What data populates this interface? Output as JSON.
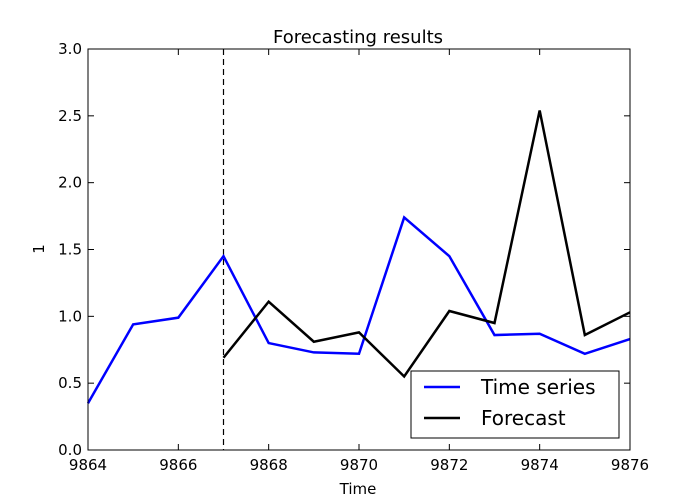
{
  "chart_data": {
    "type": "line",
    "title": "Forecasting results",
    "xlabel": "Time",
    "ylabel": "1",
    "xlim": [
      9864,
      9876
    ],
    "ylim": [
      0.0,
      3.0
    ],
    "xticks": [
      "9864",
      "9866",
      "9868",
      "9870",
      "9872",
      "9874",
      "9876"
    ],
    "yticks": [
      "0.0",
      "0.5",
      "1.0",
      "1.5",
      "2.0",
      "2.5",
      "3.0"
    ],
    "grid": false,
    "legend_position": "bottom-right",
    "vline": {
      "x": 9867,
      "style": "dashed",
      "color": "#000000"
    },
    "series": [
      {
        "name": "Time series",
        "color": "#0000ff",
        "x": [
          9864,
          9865,
          9866,
          9867,
          9868,
          9869,
          9870,
          9871,
          9872,
          9873,
          9874,
          9875,
          9876
        ],
        "y": [
          0.35,
          0.94,
          0.99,
          1.45,
          0.8,
          0.73,
          0.72,
          1.74,
          1.45,
          0.86,
          0.87,
          0.72,
          0.83
        ]
      },
      {
        "name": "Forecast",
        "color": "#000000",
        "x": [
          9867,
          9868,
          9869,
          9870,
          9871,
          9872,
          9873,
          9874,
          9875,
          9876
        ],
        "y": [
          0.69,
          1.11,
          0.81,
          0.88,
          0.55,
          1.04,
          0.95,
          2.54,
          0.86,
          1.03
        ]
      }
    ]
  }
}
